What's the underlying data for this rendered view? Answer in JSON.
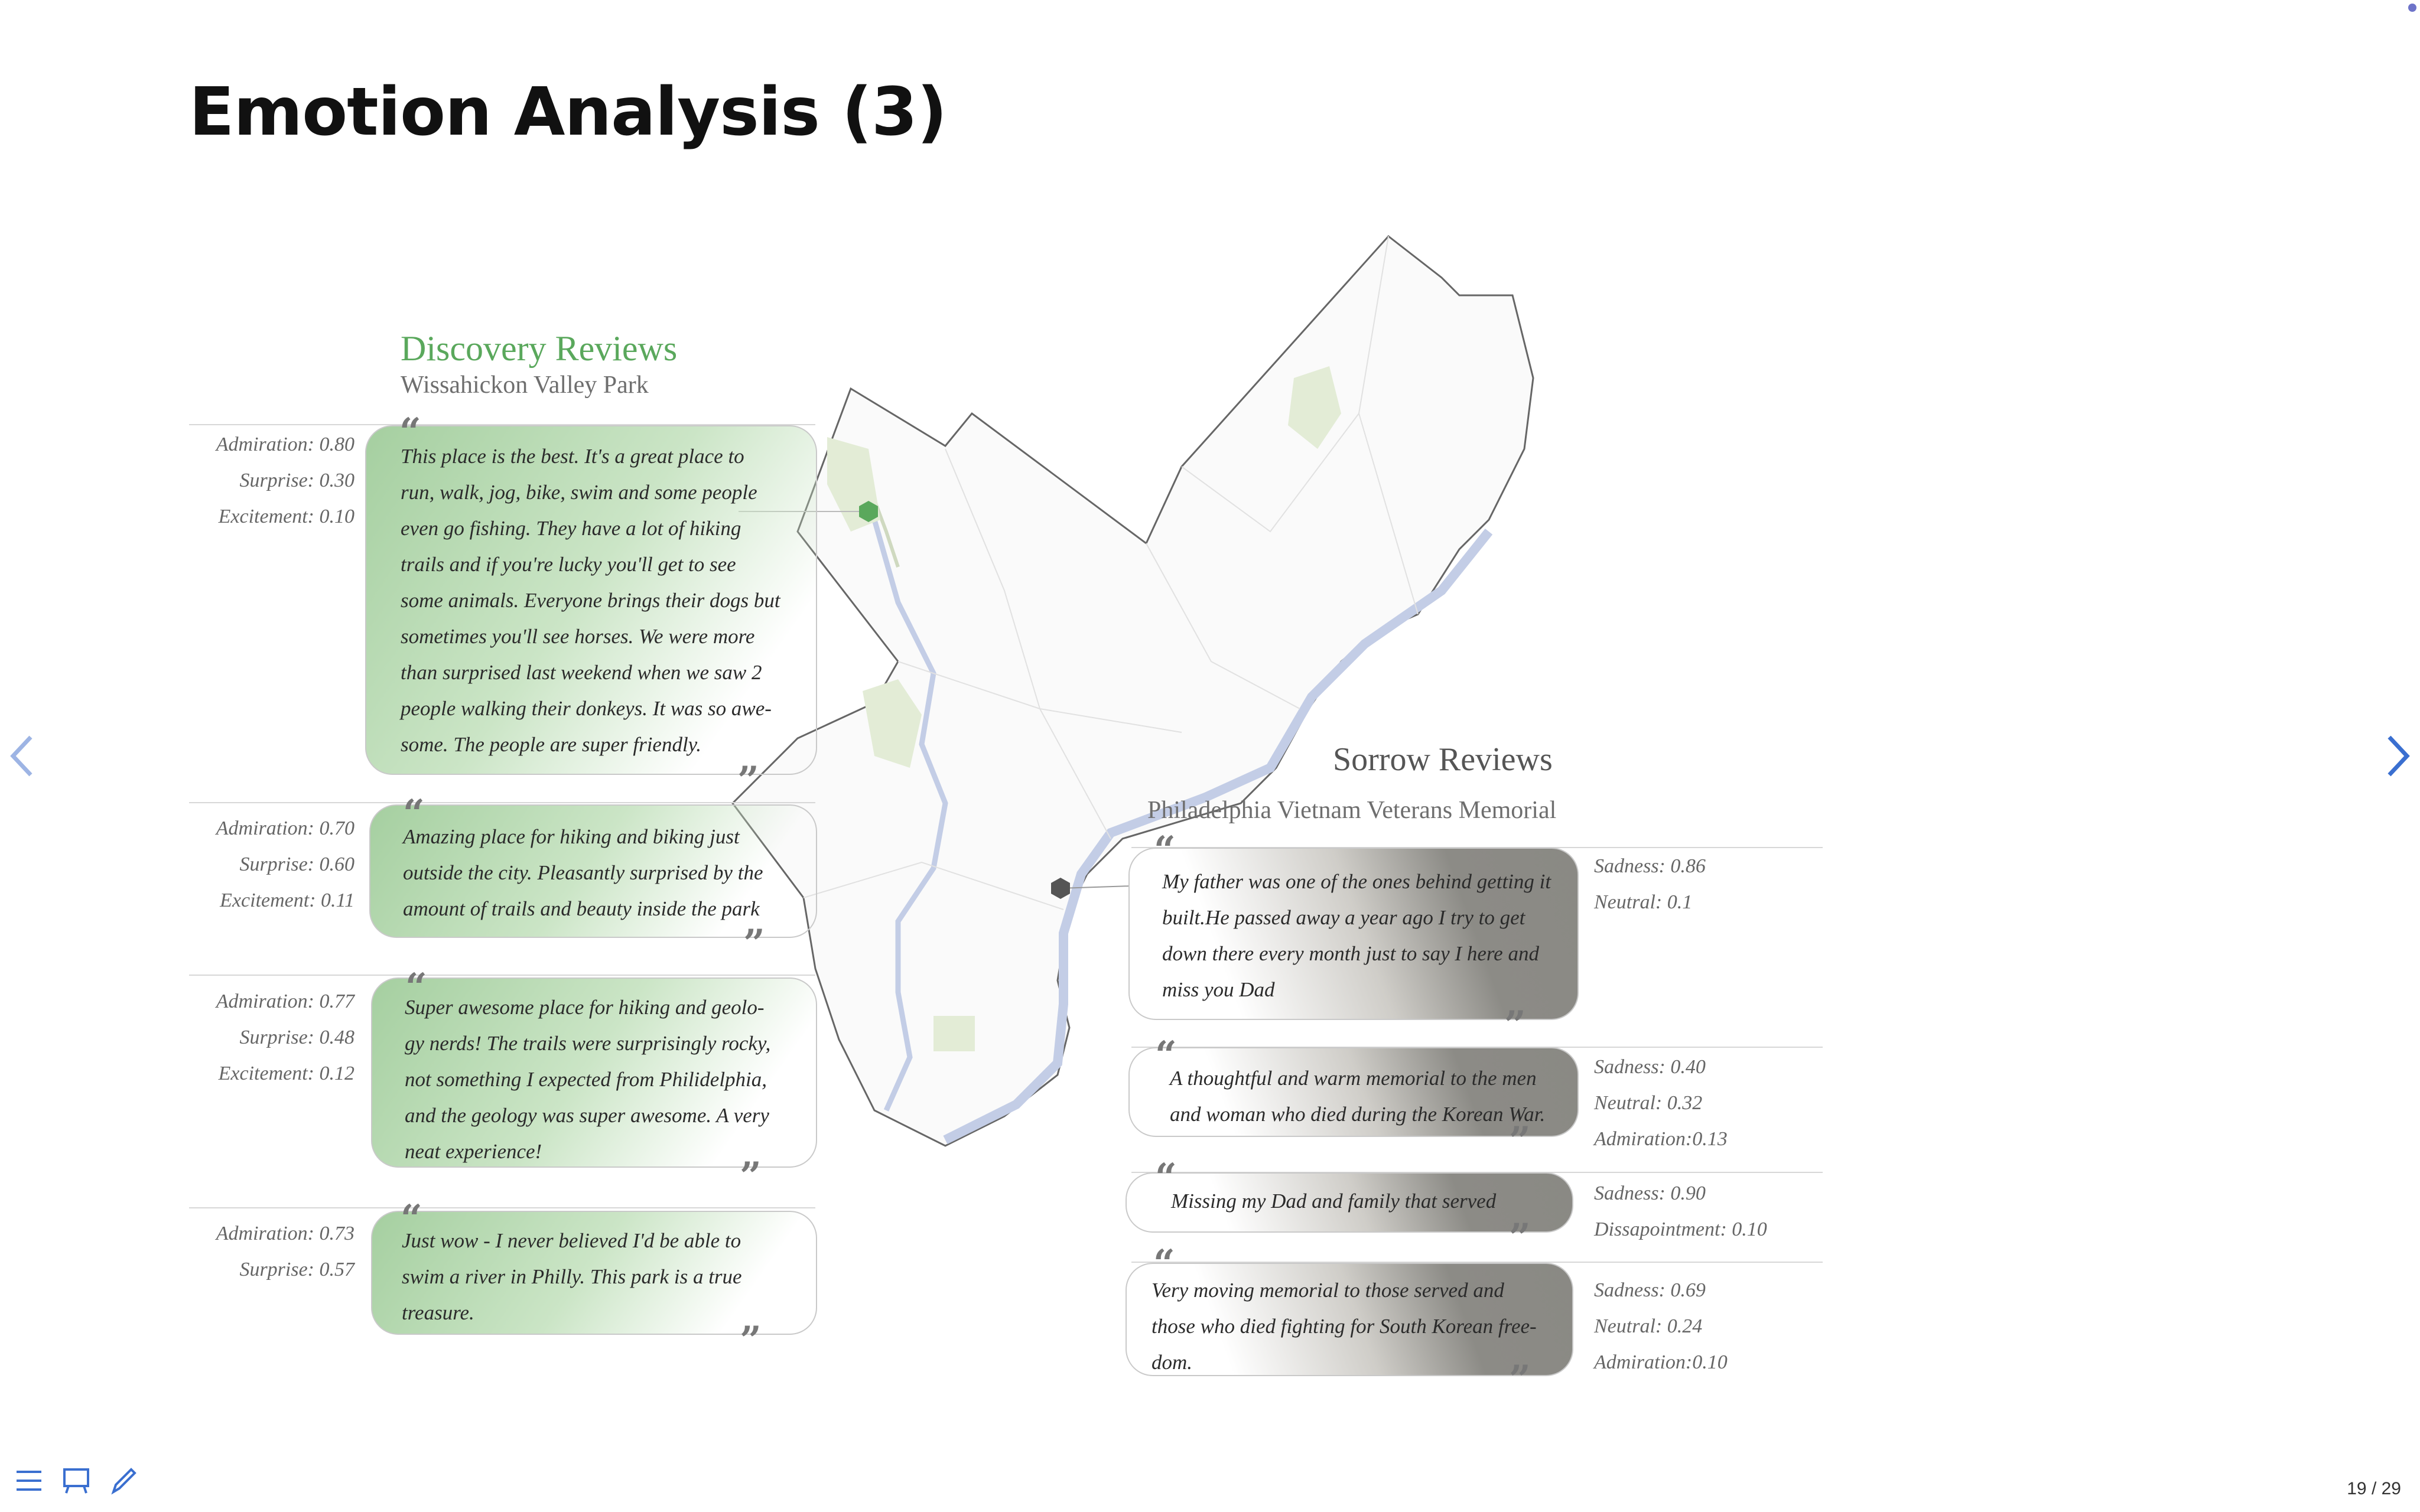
{
  "slide": {
    "title": "Emotion Analysis (3)",
    "page_indicator": "19 / 29"
  },
  "discovery": {
    "title": "Discovery Reviews",
    "location": "Wissahickon Valley Park",
    "color": "#5aa85c",
    "reviews": [
      {
        "lines": [
          "This place is the best. It's a great place to",
          "run, walk, jog, bike, swim and some people",
          "even go fishing. They have a lot of hiking",
          "trails and if you're lucky you'll get to see",
          "some animals. Everyone brings their dogs but",
          "sometimes you'll see horses. We were more",
          "than surprised last weekend when we saw 2",
          "people walking their donkeys. It was so awe-",
          "some. The people are super friendly."
        ],
        "scores": [
          "Admiration: 0.80",
          "Surprise: 0.30",
          "Excitement: 0.10"
        ]
      },
      {
        "lines": [
          "Amazing place for hiking and biking just",
          "outside the city. Pleasantly surprised by the",
          "amount of trails and beauty inside the park"
        ],
        "scores": [
          "Admiration: 0.70",
          "Surprise: 0.60",
          "Excitement: 0.11"
        ]
      },
      {
        "lines": [
          "Super awesome place for hiking and geolo-",
          "gy nerds! The trails were surprisingly rocky,",
          "not something I expected from Philidelphia,",
          "and the geology was super awesome. A very",
          "neat experience!"
        ],
        "scores": [
          "Admiration: 0.77",
          "Surprise: 0.48",
          "Excitement: 0.12"
        ]
      },
      {
        "lines": [
          "Just wow - I never believed I'd be able to",
          "swim a river in Philly.  This park is a true",
          "treasure."
        ],
        "scores": [
          "Admiration: 0.73",
          "Surprise: 0.57"
        ]
      }
    ]
  },
  "sorrow": {
    "title": "Sorrow Reviews",
    "location": "Philadelphia Vietnam Veterans Memorial",
    "reviews": [
      {
        "lines": [
          "My father was one of the ones behind getting it",
          "built.He passed away a year ago I try to get",
          "down there every month just to say I here and",
          "miss you Dad"
        ],
        "scores": [
          "Sadness: 0.86",
          "Neutral: 0.1"
        ]
      },
      {
        "lines": [
          "A thoughtful and warm memorial to the men",
          "and woman who died during the Korean War."
        ],
        "scores": [
          "Sadness: 0.40",
          "Neutral: 0.32",
          "Admiration:0.13"
        ]
      },
      {
        "lines": [
          "Missing my Dad and family that served"
        ],
        "scores": [
          "Sadness: 0.90",
          "Dissapointment: 0.10"
        ]
      },
      {
        "lines": [
          "Very moving memorial to those served and",
          "those who died fighting for South Korean free-",
          "dom."
        ],
        "scores": [
          "Sadness: 0.69",
          "Neutral: 0.24",
          "Admiration:0.10"
        ]
      }
    ]
  },
  "map": {
    "discovery_marker_color": "#5aa85c",
    "sorrow_marker_color": "#555555",
    "river_color": "#c3cde6",
    "park_color": "#e3ecd6"
  },
  "quote_open": "“",
  "quote_close": "”",
  "nav": {
    "prev_icon": "chevron-left-icon",
    "next_icon": "chevron-right-icon"
  },
  "toolbar": {
    "icons": [
      "menu-icon",
      "slides-icon",
      "pen-icon"
    ]
  }
}
